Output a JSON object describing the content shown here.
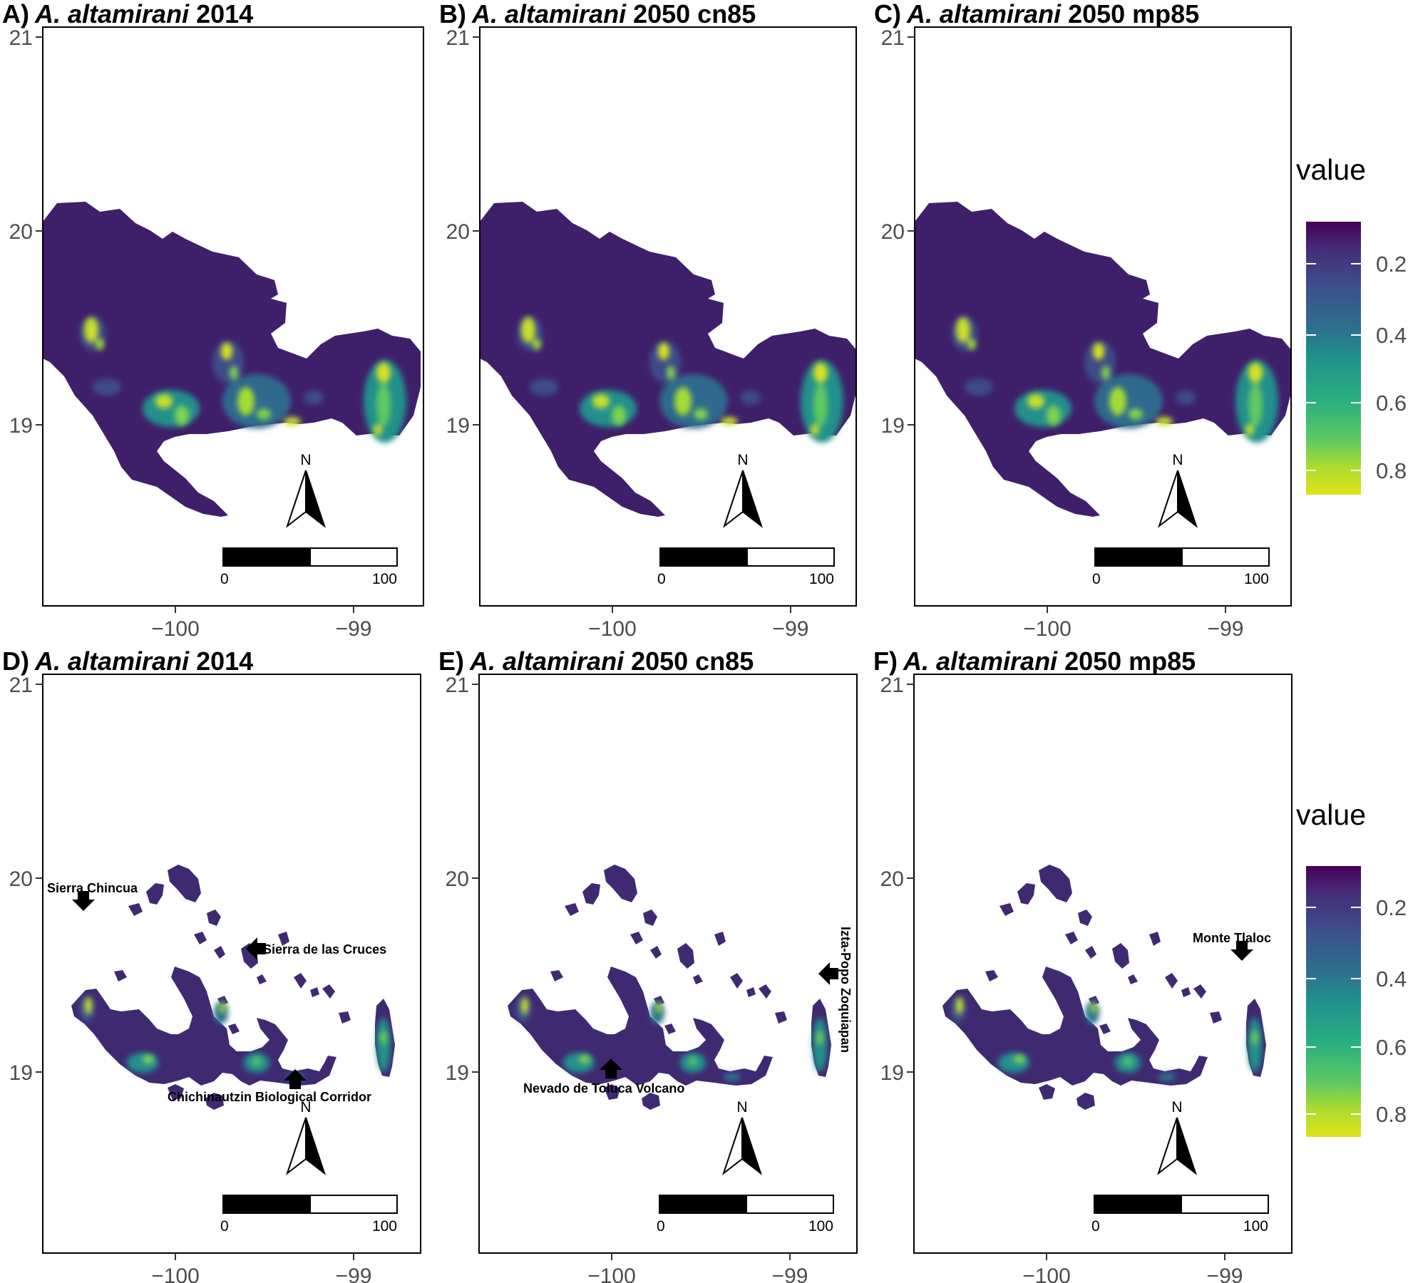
{
  "panels": [
    {
      "label": "A)",
      "species": "A. altamirani",
      "scenario": "2014",
      "variant": "continuous"
    },
    {
      "label": "B)",
      "species": "A. altamirani",
      "scenario": "2050 cn85",
      "variant": "continuous"
    },
    {
      "label": "C)",
      "species": "A. altamirani",
      "scenario": "2050 mp85",
      "variant": "continuous"
    },
    {
      "label": "D)",
      "species": "A. altamirani",
      "scenario": "2014",
      "variant": "thresholded"
    },
    {
      "label": "E)",
      "species": "A. altamirani",
      "scenario": "2050 cn85",
      "variant": "thresholded"
    },
    {
      "label": "F)",
      "species": "A. altamirani",
      "scenario": "2050 mp85",
      "variant": "thresholded"
    }
  ],
  "axes": {
    "x_ticks": [
      "−100",
      "−99"
    ],
    "y_ticks": [
      "21",
      "20",
      "19"
    ],
    "x_values": [
      -100,
      -99
    ],
    "y_values": [
      21,
      20,
      19
    ]
  },
  "north_arrow": {
    "label": "N"
  },
  "scale_bar": {
    "start": "0",
    "end": "100"
  },
  "legend": {
    "title": "value",
    "ticks": [
      "0.2",
      "0.4",
      "0.6",
      "0.8"
    ],
    "tick_values": [
      0.2,
      0.4,
      0.6,
      0.8
    ],
    "palette": "viridis",
    "colors": [
      "#440154",
      "#3b528b",
      "#21918c",
      "#5ec962",
      "#fde725"
    ]
  },
  "annotations": [
    {
      "panel": "D)",
      "text": "Sierra Chincua",
      "arrow": "down"
    },
    {
      "panel": "D)",
      "text": "Sierra de las Cruces",
      "arrow": "left"
    },
    {
      "panel": "D)",
      "text": "Chichinautzin Biological Corridor",
      "arrow": "up"
    },
    {
      "panel": "E)",
      "text": "Nevado de Toluca Volcano",
      "arrow": "up"
    },
    {
      "panel": "E)",
      "text": "Izta-Popo Zoquiapan",
      "arrow": "left"
    },
    {
      "panel": "F)",
      "text": "Monte Tlaloc",
      "arrow": "down"
    }
  ]
}
